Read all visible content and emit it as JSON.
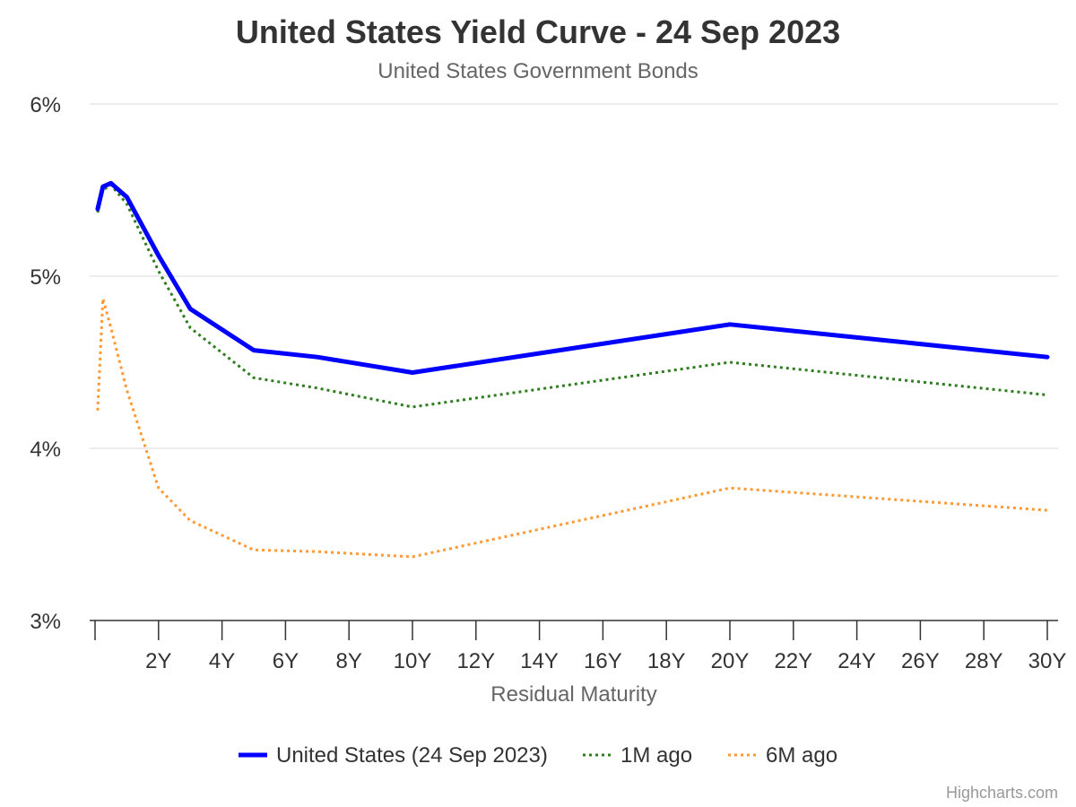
{
  "chart_data": {
    "type": "line",
    "title": "United States Yield Curve - 24 Sep 2023",
    "subtitle": "United States Government Bonds",
    "xlabel": "Residual Maturity",
    "ylabel": "",
    "xlim": [
      0,
      30
    ],
    "ylim": [
      3,
      6
    ],
    "x_tick_values": [
      2,
      4,
      6,
      8,
      10,
      12,
      14,
      16,
      18,
      20,
      22,
      24,
      26,
      28,
      30
    ],
    "x_tick_labels": [
      "2Y",
      "4Y",
      "6Y",
      "8Y",
      "10Y",
      "12Y",
      "14Y",
      "16Y",
      "18Y",
      "20Y",
      "22Y",
      "24Y",
      "26Y",
      "28Y",
      "30Y"
    ],
    "y_tick_values": [
      3,
      4,
      5,
      6
    ],
    "y_tick_labels": [
      "3%",
      "4%",
      "5%",
      "6%"
    ],
    "grid": true,
    "legend_position": "bottom",
    "x": [
      0.083,
      0.25,
      0.5,
      1,
      2,
      3,
      5,
      7,
      10,
      20,
      30
    ],
    "series": [
      {
        "name": "United States (24 Sep 2023)",
        "color": "#0000ff",
        "style": "solid",
        "values": [
          5.39,
          5.52,
          5.54,
          5.46,
          5.12,
          4.81,
          4.57,
          4.53,
          4.44,
          4.72,
          4.53
        ]
      },
      {
        "name": "1M ago",
        "color": "#2e7d1f",
        "style": "dotted",
        "values": [
          5.37,
          5.5,
          5.53,
          5.42,
          5.03,
          4.7,
          4.41,
          4.35,
          4.24,
          4.5,
          4.31
        ]
      },
      {
        "name": "6M ago",
        "color": "#ff9933",
        "style": "dotted",
        "values": [
          4.22,
          4.87,
          4.7,
          4.34,
          3.77,
          3.58,
          3.41,
          3.4,
          3.37,
          3.77,
          3.64
        ]
      }
    ]
  },
  "credits": "Highcharts.com"
}
